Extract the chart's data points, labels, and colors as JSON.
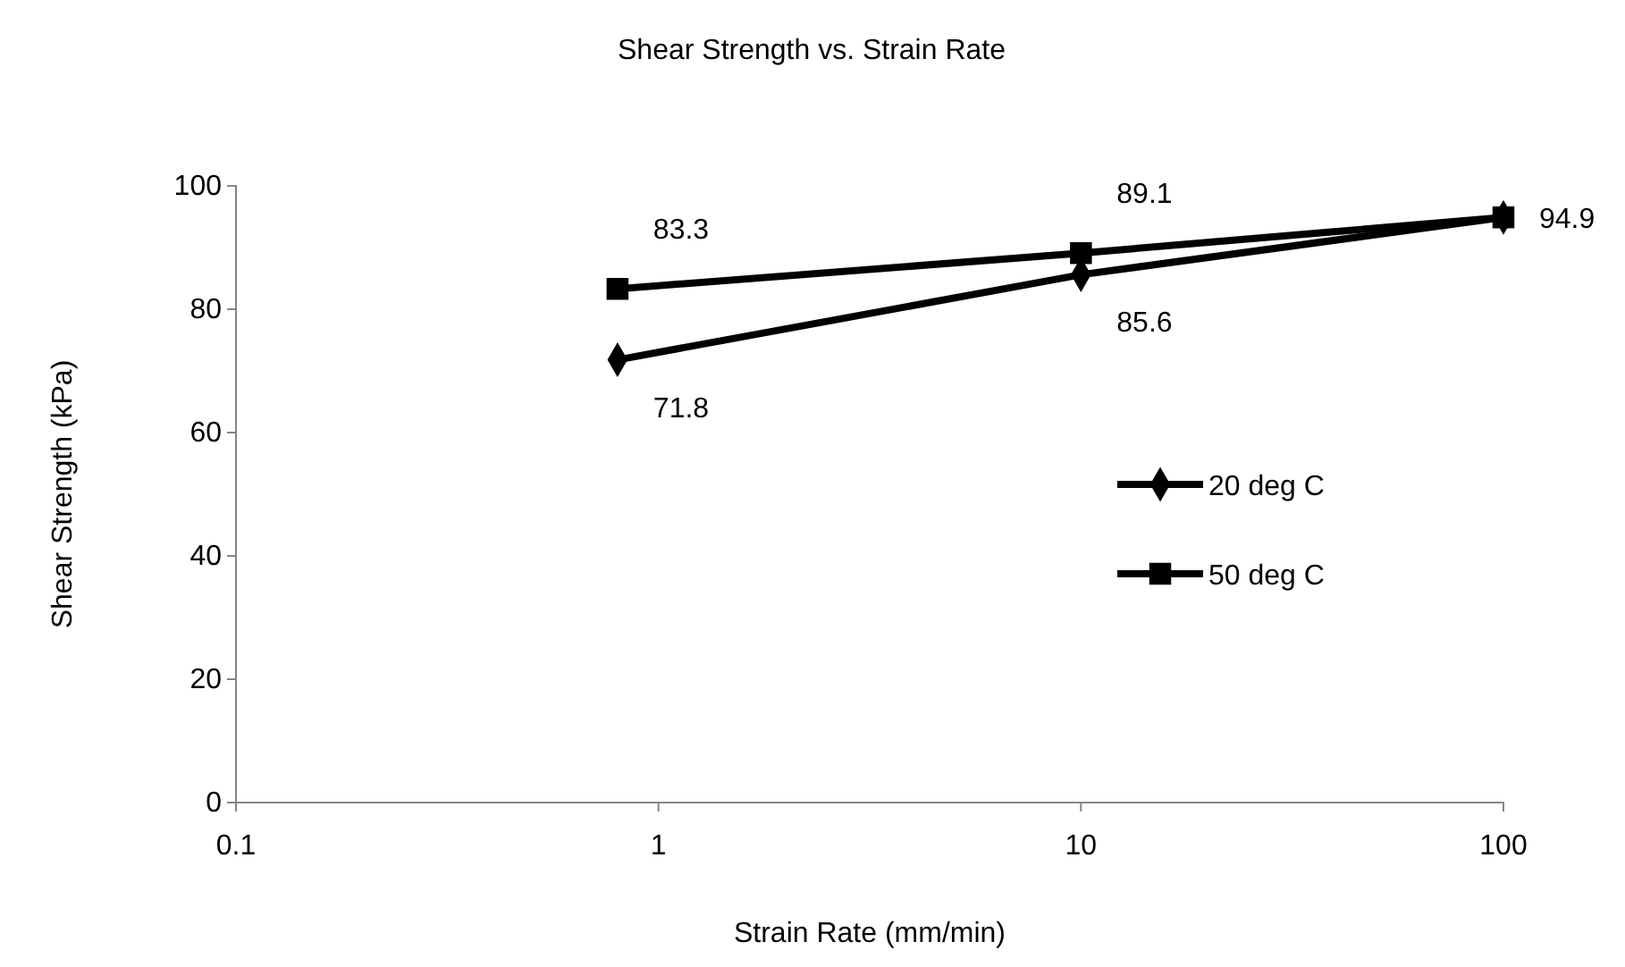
{
  "chart_data": {
    "type": "line",
    "title": "Shear Strength vs. Strain Rate",
    "xlabel": "Strain Rate (mm/min)",
    "ylabel": "Shear Strength (kPa)",
    "log": "x",
    "xlim": [
      0.1,
      100
    ],
    "xticks": [
      0.1,
      1,
      10,
      100
    ],
    "ylim": [
      0,
      100
    ],
    "yticks": [
      0,
      20,
      40,
      60,
      80,
      100
    ],
    "grid": false,
    "legend": "right",
    "x": [
      0.8,
      10,
      100
    ],
    "series": [
      {
        "name": "20 deg C",
        "color": "#000000",
        "marker": "diamond",
        "values": [
          71.8,
          85.6,
          94.9
        ],
        "value_labels": [
          "71.8",
          "85.6",
          null
        ]
      },
      {
        "name": "50 deg C",
        "color": "#000000",
        "marker": "square",
        "values": [
          83.3,
          89.1,
          94.9
        ],
        "value_labels": [
          "83.3",
          "89.1",
          "94.9"
        ]
      }
    ]
  }
}
